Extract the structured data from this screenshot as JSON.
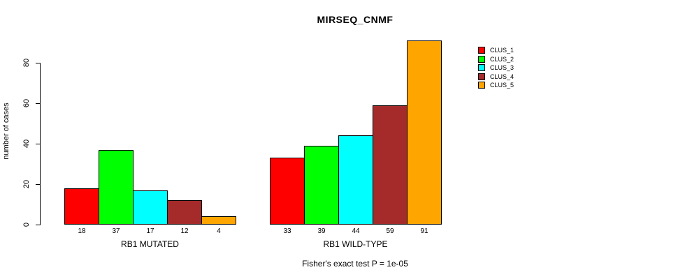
{
  "chart_data": {
    "type": "bar",
    "title": "MIRSEQ_CNMF",
    "ylabel": "number of cases",
    "xlabel": "",
    "ylim": [
      0,
      91
    ],
    "yticks": [
      0,
      20,
      40,
      60,
      80
    ],
    "grid": false,
    "legend_position": "right",
    "bar_value_labels": true,
    "categories": [
      "RB1 MUTATED",
      "RB1 WILD-TYPE"
    ],
    "series": [
      {
        "name": "CLUS_1",
        "color": "#FF0000",
        "values": [
          18,
          33
        ]
      },
      {
        "name": "CLUS_2",
        "color": "#00FF00",
        "values": [
          37,
          39
        ]
      },
      {
        "name": "CLUS_3",
        "color": "#00FFFF",
        "values": [
          17,
          44
        ]
      },
      {
        "name": "CLUS_4",
        "color": "#A52A2A",
        "values": [
          12,
          59
        ]
      },
      {
        "name": "CLUS_5",
        "color": "#FFA500",
        "values": [
          4,
          91
        ]
      }
    ],
    "annotation": "Fisher's exact test P = 1e-05"
  }
}
